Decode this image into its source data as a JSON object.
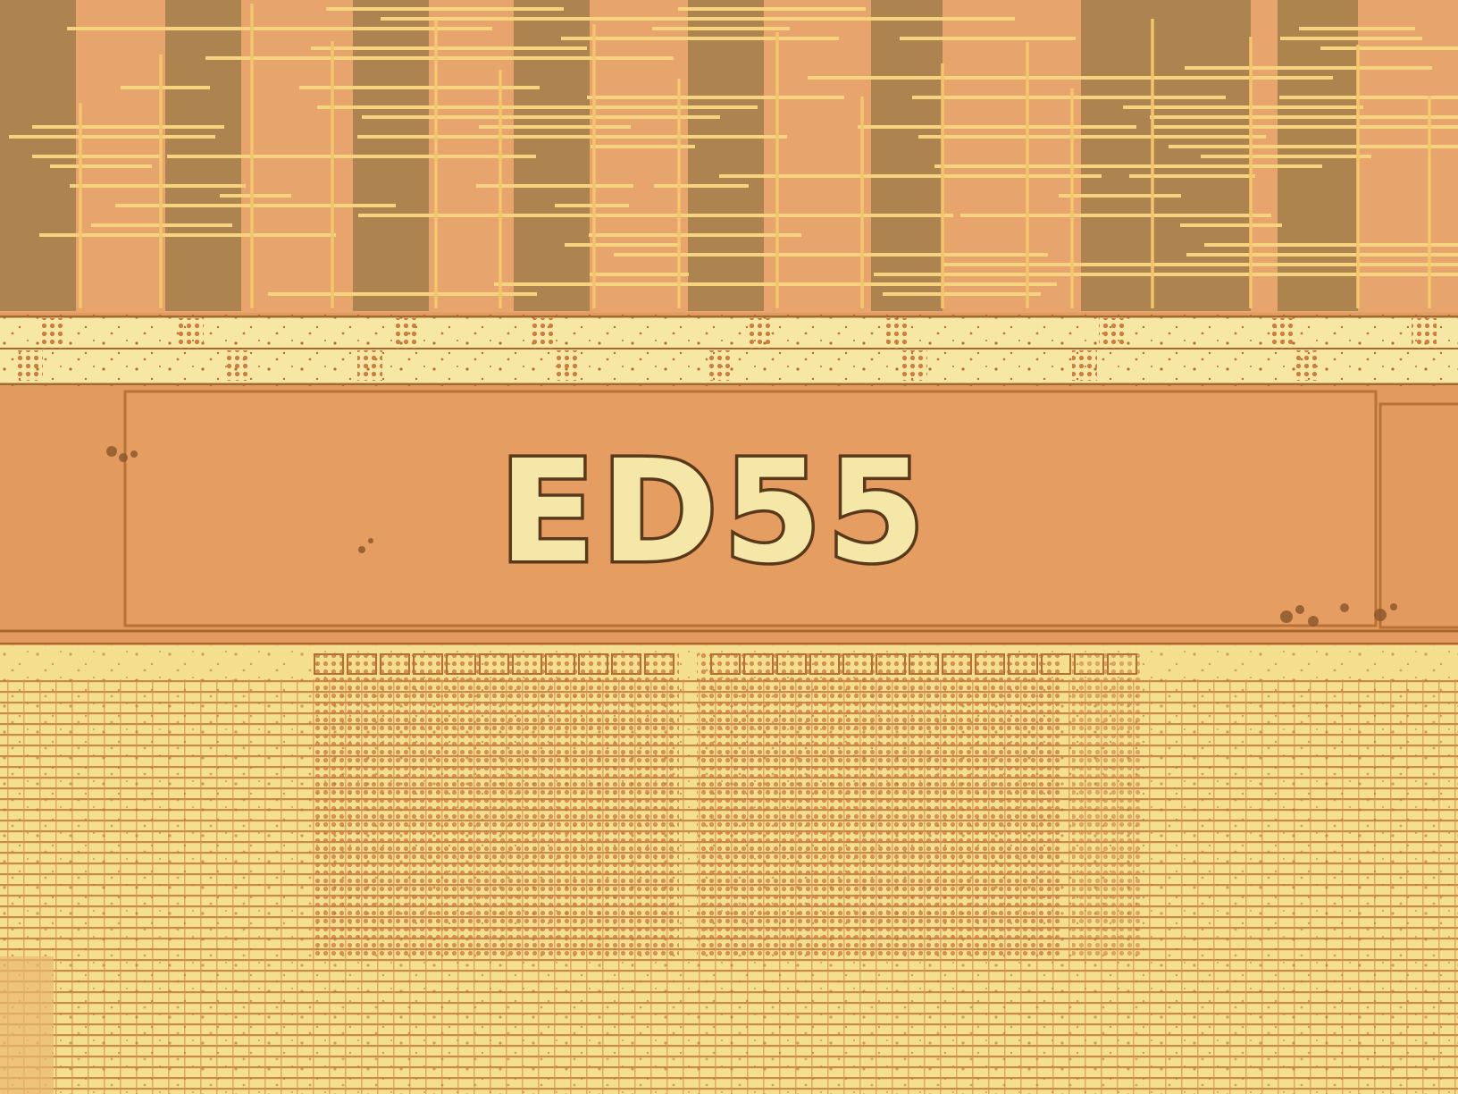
{
  "die_marking": {
    "text": "ED55"
  },
  "colors": {
    "substrate": "#e39a5f",
    "logic_area": "#e7a46c",
    "metal_trace": "#f6d37f",
    "trace_edge": "#a8662c",
    "cell_column": "#9a7a45",
    "power_rail": "#f6e8a4",
    "memory_array": "#f3df8e",
    "marking_fill": "#f4e7a8",
    "marking_outline": "#5a3a1c"
  }
}
